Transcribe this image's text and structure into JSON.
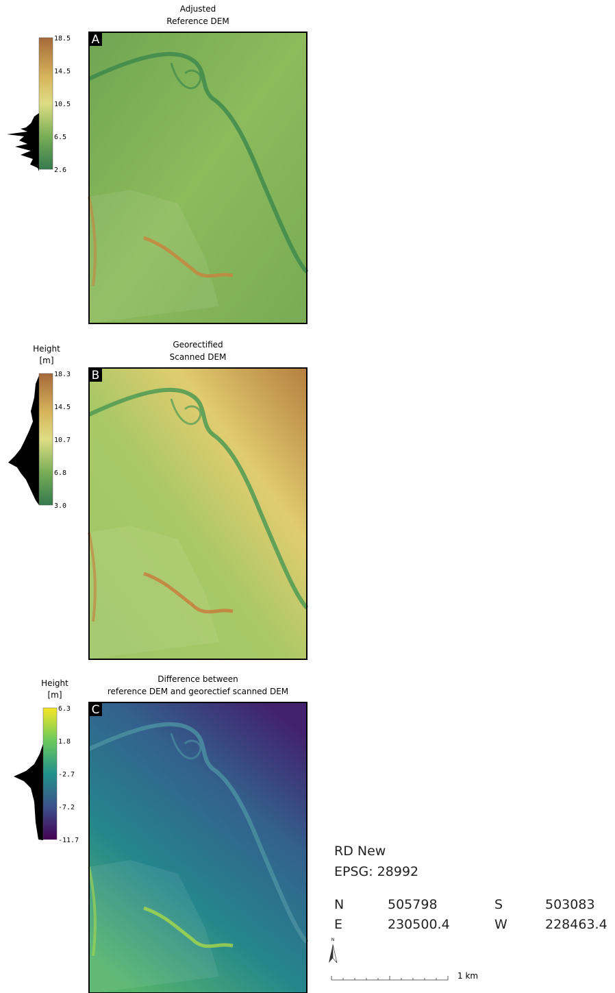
{
  "panels": [
    {
      "letter": "A",
      "title": [
        "Adjusted",
        "Reference DEM"
      ],
      "colorbar_ticks": [
        "18.5",
        "14.5",
        "10.5",
        "6.5",
        "2.6"
      ]
    },
    {
      "letter": "B",
      "title": [
        "Georectified",
        "Scanned DEM"
      ],
      "legend_label": [
        "Height",
        "[m]"
      ],
      "colorbar_ticks": [
        "18.3",
        "14.5",
        "10.7",
        "6.8",
        "3.0"
      ]
    },
    {
      "letter": "C",
      "title": [
        "Difference between",
        "reference DEM and georectief scanned DEM"
      ],
      "legend_label": [
        "Height",
        "[m]"
      ],
      "colorbar_ticks": [
        "6.3",
        "1.8",
        "-2.7",
        "-7.2",
        "-11.7"
      ]
    }
  ],
  "crs": {
    "name": "RD New",
    "epsg": "EPSG: 28992"
  },
  "extent": [
    [
      "N",
      "505798",
      "S",
      "503083"
    ],
    [
      "E",
      "230500.4",
      "W",
      "228463.4"
    ]
  ],
  "north_label": "N",
  "scale_bar": "1 km"
}
